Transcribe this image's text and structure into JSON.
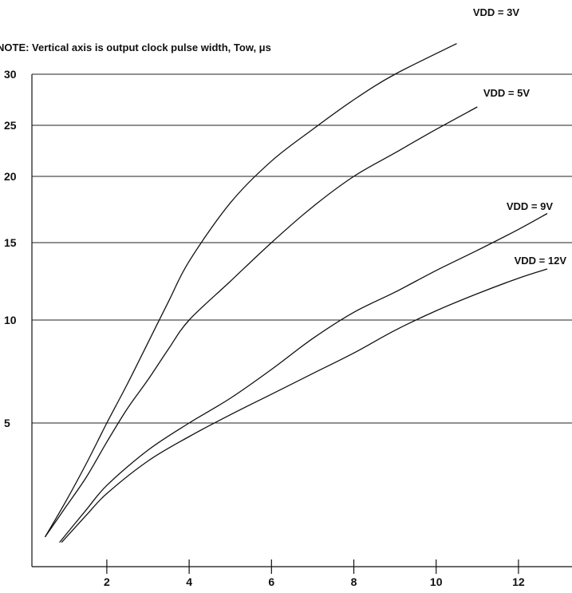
{
  "chart_data": {
    "type": "line",
    "note": "NOTE:  Vertical axis is output clock pulse width, Tow, μs",
    "x_ticks": [
      2,
      4,
      6,
      8,
      10,
      12
    ],
    "y_ticks": [
      5,
      10,
      15,
      20,
      25,
      30
    ],
    "xlim": [
      0,
      13
    ],
    "ylim": [
      0,
      30
    ],
    "grid": "horizontal",
    "series": [
      {
        "name": "VDD = 3V",
        "x": [
          0.5,
          1.0,
          1.5,
          2.0,
          2.5,
          3.0,
          3.5,
          4.0,
          5.0,
          6.0,
          7.0,
          8.0,
          9.0,
          10.5
        ],
        "y": [
          0.8,
          2.1,
          3.5,
          5.0,
          6.9,
          8.9,
          11.2,
          13.8,
          18.0,
          21.5,
          24.6,
          27.5,
          30.0,
          33.0
        ]
      },
      {
        "name": "VDD = 5V",
        "x": [
          0.5,
          1.0,
          1.5,
          2.0,
          2.5,
          3.0,
          3.5,
          4.0,
          5.0,
          6.0,
          7.0,
          8.0,
          9.0,
          10.0,
          11.0
        ],
        "y": [
          0.8,
          1.9,
          3.0,
          4.3,
          5.7,
          7.1,
          8.6,
          10.0,
          12.5,
          15.0,
          17.7,
          20.0,
          22.3,
          24.6,
          26.8
        ]
      },
      {
        "name": "VDD = 9V",
        "x": [
          0.85,
          1.5,
          2.0,
          3.0,
          4.0,
          5.0,
          6.0,
          7.0,
          8.0,
          9.0,
          10.0,
          11.0,
          12.0,
          12.7
        ],
        "y": [
          0.6,
          1.8,
          2.7,
          4.0,
          5.0,
          6.2,
          7.6,
          9.1,
          10.5,
          11.8,
          13.2,
          14.5,
          16.0,
          17.2
        ]
      },
      {
        "name": "VDD = 12V",
        "x": [
          0.9,
          1.5,
          2.0,
          3.0,
          4.0,
          5.0,
          6.0,
          7.0,
          8.0,
          9.0,
          10.0,
          11.0,
          12.0,
          12.7
        ],
        "y": [
          0.6,
          1.6,
          2.4,
          3.6,
          4.5,
          5.4,
          6.4,
          7.4,
          8.4,
          9.5,
          10.6,
          11.7,
          12.7,
          13.3
        ]
      }
    ]
  }
}
